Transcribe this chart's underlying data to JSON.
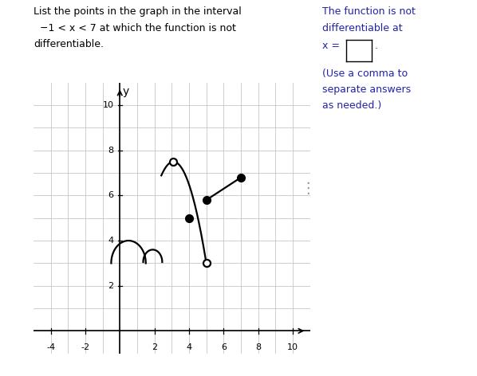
{
  "title_text_l1": "List the points in the graph in the interval",
  "title_text_l2": "  −1 < x < 7 at which the function is not",
  "title_text_l3": "differentiable.",
  "right_text_line1": "The function is not",
  "right_text_line2": "differentiable at",
  "right_text_line3": "x =",
  "right_text_line4": "(Use a comma to",
  "right_text_line5": "separate answers",
  "right_text_line6": "as needed.)",
  "xlim": [
    -5,
    11
  ],
  "ylim": [
    -1,
    11
  ],
  "grid_color": "#bbbbbb",
  "axis_color": "#000000",
  "curve_color": "#000000",
  "bg_color": "#ffffff",
  "text_color": "#000000",
  "right_text_color": "#2222aa",
  "box_border_color": "#000000"
}
